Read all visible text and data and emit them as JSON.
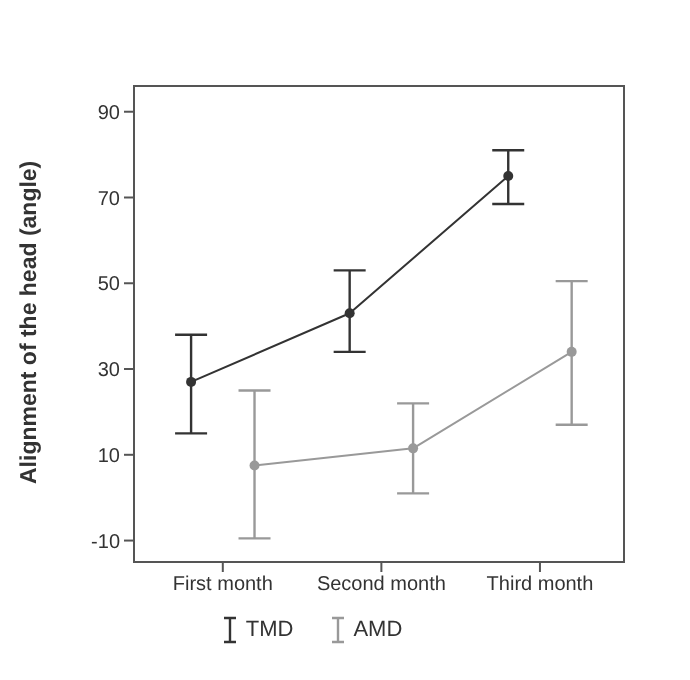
{
  "chart_data": {
    "type": "line",
    "ylabel": "Alignment of the head (angle)",
    "categories": [
      "First month",
      "Second month",
      "Third month"
    ],
    "series": [
      {
        "name": "TMD",
        "color": "#333333",
        "values": [
          27,
          43,
          75
        ],
        "errors": [
          [
            15,
            38
          ],
          [
            34,
            53
          ],
          [
            68.5,
            81
          ]
        ]
      },
      {
        "name": "AMD",
        "color": "#999999",
        "values": [
          7.5,
          11.5,
          34
        ],
        "errors": [
          [
            -9.5,
            25
          ],
          [
            1,
            22
          ],
          [
            17,
            50.5
          ]
        ]
      }
    ],
    "ylim": [
      -15,
      96
    ],
    "yticks": [
      -10,
      10,
      30,
      50,
      70,
      90
    ],
    "legend": "bottom",
    "marker": "circle",
    "line_style": "solid"
  }
}
